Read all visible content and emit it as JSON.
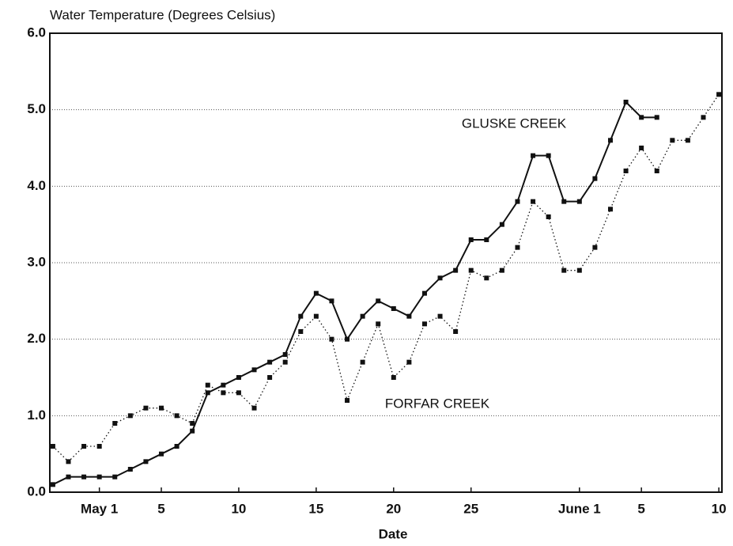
{
  "chart_data": {
    "type": "line",
    "title": "Water Temperature (Degrees Celsius)",
    "x_label": "Date",
    "annotations": [
      "GLUSKE CREEK",
      "FORFAR CREEK"
    ],
    "x": [
      -2,
      -1,
      0,
      1,
      2,
      3,
      4,
      5,
      6,
      7,
      8,
      9,
      10,
      11,
      12,
      13,
      14,
      15,
      16,
      17,
      18,
      19,
      20,
      21,
      22,
      23,
      24,
      25,
      26,
      27,
      28,
      29,
      30,
      31,
      32,
      33,
      34,
      35,
      36,
      37,
      38,
      39,
      40,
      41
    ],
    "series": [
      {
        "name": "GLUSKE CREEK",
        "color": "#111111",
        "dash": false,
        "values": [
          0.1,
          0.2,
          0.2,
          0.2,
          0.2,
          0.3,
          0.4,
          0.5,
          0.6,
          0.8,
          1.3,
          1.4,
          1.5,
          1.6,
          1.7,
          1.8,
          2.3,
          2.6,
          2.5,
          2.0,
          2.3,
          2.5,
          2.4,
          2.3,
          2.6,
          2.8,
          2.9,
          3.3,
          3.3,
          3.5,
          3.8,
          4.4,
          4.4,
          3.8,
          3.8,
          4.1,
          4.6,
          5.1,
          4.9,
          4.9,
          null,
          null,
          null,
          null
        ]
      },
      {
        "name": "FORFAR CREEK",
        "color": "#111111",
        "dash": true,
        "values": [
          0.6,
          0.4,
          0.6,
          0.6,
          0.9,
          1.0,
          1.1,
          1.1,
          1.0,
          0.9,
          1.4,
          1.3,
          1.3,
          1.1,
          1.5,
          1.7,
          2.1,
          2.3,
          2.0,
          1.2,
          1.7,
          2.2,
          1.5,
          1.7,
          2.2,
          2.3,
          2.1,
          2.9,
          2.8,
          2.9,
          3.2,
          3.8,
          3.6,
          2.9,
          2.9,
          3.2,
          3.7,
          4.2,
          4.5,
          4.2,
          4.6,
          4.6,
          4.9,
          5.2
        ]
      }
    ],
    "xlim": [
      -2.2,
      41.2
    ],
    "xticks": [
      {
        "value": 1,
        "label": "May 1"
      },
      5,
      10,
      15,
      20,
      25,
      {
        "value": 32,
        "label": "June 1"
      },
      {
        "value": 36,
        "label": "5"
      },
      {
        "value": 41,
        "label": "10"
      }
    ],
    "ylim": [
      0,
      6
    ],
    "yticks": [
      {
        "value": 0,
        "label": "0.0"
      },
      {
        "value": 1,
        "label": "1.0"
      },
      {
        "value": 2,
        "label": "2.0"
      },
      {
        "value": 3,
        "label": "3.0"
      },
      {
        "value": 4,
        "label": "4.0"
      },
      {
        "value": 5,
        "label": "5.0"
      },
      {
        "value": 6,
        "label": "6.0"
      }
    ],
    "grid": true
  }
}
